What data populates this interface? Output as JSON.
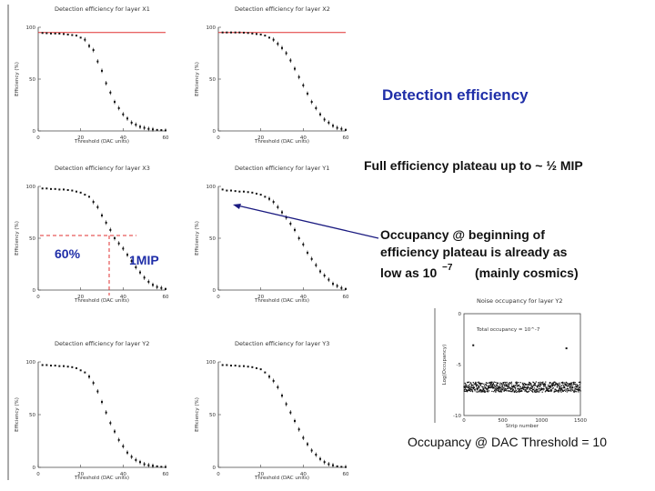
{
  "heading": "Detection efficiency",
  "plateau_note": "Full efficiency plateau up to ~ ½ MIP",
  "occupancy_note": {
    "lines": [
      "Occupancy @ beginning of",
      "efficiency plateau is already as",
      "low as 10"
    ],
    "exponent": "−7",
    "suffix": "(mainly cosmics)"
  },
  "annotations": {
    "sixty_percent": "60%",
    "one_mip": "1MIP"
  },
  "caption": "Occupancy @ DAC Threshold = 10",
  "colors": {
    "heading": "#1f2ea8",
    "plateau_line": "#e03030",
    "arrow": "#1a1a80",
    "dashed": "#e03030"
  },
  "chart_data": [
    {
      "type": "scatter",
      "title": "Detection efficiency for layer X1",
      "xlabel": "Threshold (DAC units)",
      "ylabel": "Efficiency (%)",
      "xlim": [
        0,
        60
      ],
      "ylim": [
        0,
        100
      ],
      "xticks": [
        0,
        20,
        40,
        60
      ],
      "yticks": [
        0,
        50,
        100
      ],
      "plateau": 95,
      "x": [
        2,
        4,
        6,
        8,
        10,
        12,
        14,
        16,
        18,
        20,
        22,
        24,
        26,
        28,
        30,
        32,
        34,
        36,
        38,
        40,
        42,
        44,
        46,
        48,
        50,
        52,
        54,
        56,
        58,
        60
      ],
      "y": [
        94.5,
        94.3,
        94,
        94,
        93.9,
        93.5,
        93,
        92.5,
        92,
        90,
        88,
        82,
        78,
        67,
        58,
        46,
        37,
        28,
        22,
        16,
        12,
        8,
        6,
        4,
        3,
        2,
        1.5,
        1,
        0.8,
        0.5
      ]
    },
    {
      "type": "scatter",
      "title": "Detection efficiency for layer X2",
      "xlabel": "Threshold (DAC units)",
      "ylabel": "Efficiency (%)",
      "xlim": [
        0,
        60
      ],
      "ylim": [
        0,
        100
      ],
      "xticks": [
        0,
        20,
        40,
        60
      ],
      "yticks": [
        0,
        50,
        100
      ],
      "plateau": 95,
      "x": [
        2,
        4,
        6,
        8,
        10,
        12,
        14,
        16,
        18,
        20,
        22,
        24,
        26,
        28,
        30,
        32,
        34,
        36,
        38,
        40,
        42,
        44,
        46,
        48,
        50,
        52,
        54,
        56,
        58,
        60
      ],
      "y": [
        95,
        95,
        95,
        95,
        95,
        94.8,
        94.5,
        94,
        93.5,
        93,
        92,
        90,
        88,
        84,
        80,
        75,
        68,
        60,
        52,
        44,
        36,
        28,
        22,
        16,
        11,
        8,
        5,
        3,
        2,
        1
      ]
    },
    {
      "type": "scatter",
      "title": "Detection efficiency for layer X3",
      "xlabel": "Threshold (DAC units)",
      "ylabel": "Efficiency (%)",
      "xlim": [
        0,
        60
      ],
      "ylim": [
        0,
        100
      ],
      "xticks": [
        0,
        20,
        40,
        60
      ],
      "yticks": [
        0,
        50,
        100
      ],
      "x": [
        2,
        4,
        6,
        8,
        10,
        12,
        14,
        16,
        18,
        20,
        22,
        24,
        26,
        28,
        30,
        32,
        34,
        36,
        38,
        40,
        42,
        44,
        46,
        48,
        50,
        52,
        54,
        56,
        58,
        60
      ],
      "y": [
        98,
        98,
        97.5,
        97.5,
        97,
        97,
        96.5,
        96,
        95,
        94,
        92,
        90,
        85,
        80,
        72,
        65,
        58,
        50,
        45,
        40,
        34,
        28,
        22,
        17,
        12,
        8,
        5,
        3,
        2,
        1
      ]
    },
    {
      "type": "scatter",
      "title": "Detection efficiency for layer Y1",
      "xlabel": "Threshold (DAC units)",
      "ylabel": "Efficiency (%)",
      "xlim": [
        0,
        60
      ],
      "ylim": [
        0,
        100
      ],
      "xticks": [
        0,
        20,
        40,
        60
      ],
      "yticks": [
        0,
        50,
        100
      ],
      "x": [
        2,
        4,
        6,
        8,
        10,
        12,
        14,
        16,
        18,
        20,
        22,
        24,
        26,
        28,
        30,
        32,
        34,
        36,
        38,
        40,
        42,
        44,
        46,
        48,
        50,
        52,
        54,
        56,
        58,
        60
      ],
      "y": [
        97,
        96,
        96,
        95.5,
        95,
        95,
        94.5,
        94,
        93,
        92,
        90,
        88,
        85,
        80,
        75,
        70,
        64,
        58,
        50,
        44,
        36,
        30,
        24,
        18,
        14,
        10,
        6,
        4,
        2,
        1
      ]
    },
    {
      "type": "scatter",
      "title": "Detection efficiency for layer Y2",
      "xlabel": "Threshold (DAC units)",
      "ylabel": "Efficiency (%)",
      "xlim": [
        0,
        60
      ],
      "ylim": [
        0,
        100
      ],
      "xticks": [
        0,
        20,
        40,
        60
      ],
      "yticks": [
        0,
        50,
        100
      ],
      "x": [
        2,
        4,
        6,
        8,
        10,
        12,
        14,
        16,
        18,
        20,
        22,
        24,
        26,
        28,
        30,
        32,
        34,
        36,
        38,
        40,
        42,
        44,
        46,
        48,
        50,
        52,
        54,
        56,
        58,
        60
      ],
      "y": [
        97,
        97,
        96.5,
        96.5,
        96,
        96,
        95.5,
        95,
        94,
        92,
        90,
        86,
        80,
        72,
        62,
        52,
        42,
        34,
        26,
        20,
        14,
        10,
        7,
        5,
        3,
        2,
        1.5,
        1,
        0.5,
        0.3
      ]
    },
    {
      "type": "scatter",
      "title": "Detection efficiency for layer Y3",
      "xlabel": "Threshold (DAC units)",
      "ylabel": "Efficiency (%)",
      "xlim": [
        0,
        60
      ],
      "ylim": [
        0,
        100
      ],
      "xticks": [
        0,
        20,
        40,
        60
      ],
      "yticks": [
        0,
        50,
        100
      ],
      "x": [
        2,
        4,
        6,
        8,
        10,
        12,
        14,
        16,
        18,
        20,
        22,
        24,
        26,
        28,
        30,
        32,
        34,
        36,
        38,
        40,
        42,
        44,
        46,
        48,
        50,
        52,
        54,
        56,
        58,
        60
      ],
      "y": [
        97,
        97,
        96.5,
        96.5,
        96,
        96,
        95.5,
        95,
        94,
        93,
        90,
        86,
        82,
        76,
        68,
        60,
        52,
        44,
        36,
        28,
        22,
        16,
        12,
        8,
        5,
        3,
        2,
        1,
        0.5,
        0.3
      ]
    },
    {
      "type": "scatter",
      "title": "Noise occupancy for layer Y2",
      "xlabel": "Strip number",
      "ylabel": "Log(Occupancy)",
      "xlim": [
        0,
        1500
      ],
      "ylim": [
        -10,
        0
      ],
      "xticks": [
        0,
        500,
        1000,
        1500
      ],
      "yticks": [
        -10,
        -5,
        0
      ],
      "legend": "Total occupancy = 10^-7",
      "band_center": -7.2,
      "band_halfwidth": 0.5,
      "outliers": [
        {
          "x": 120,
          "y": -3.1
        },
        {
          "x": 1320,
          "y": -3.4
        }
      ]
    }
  ]
}
